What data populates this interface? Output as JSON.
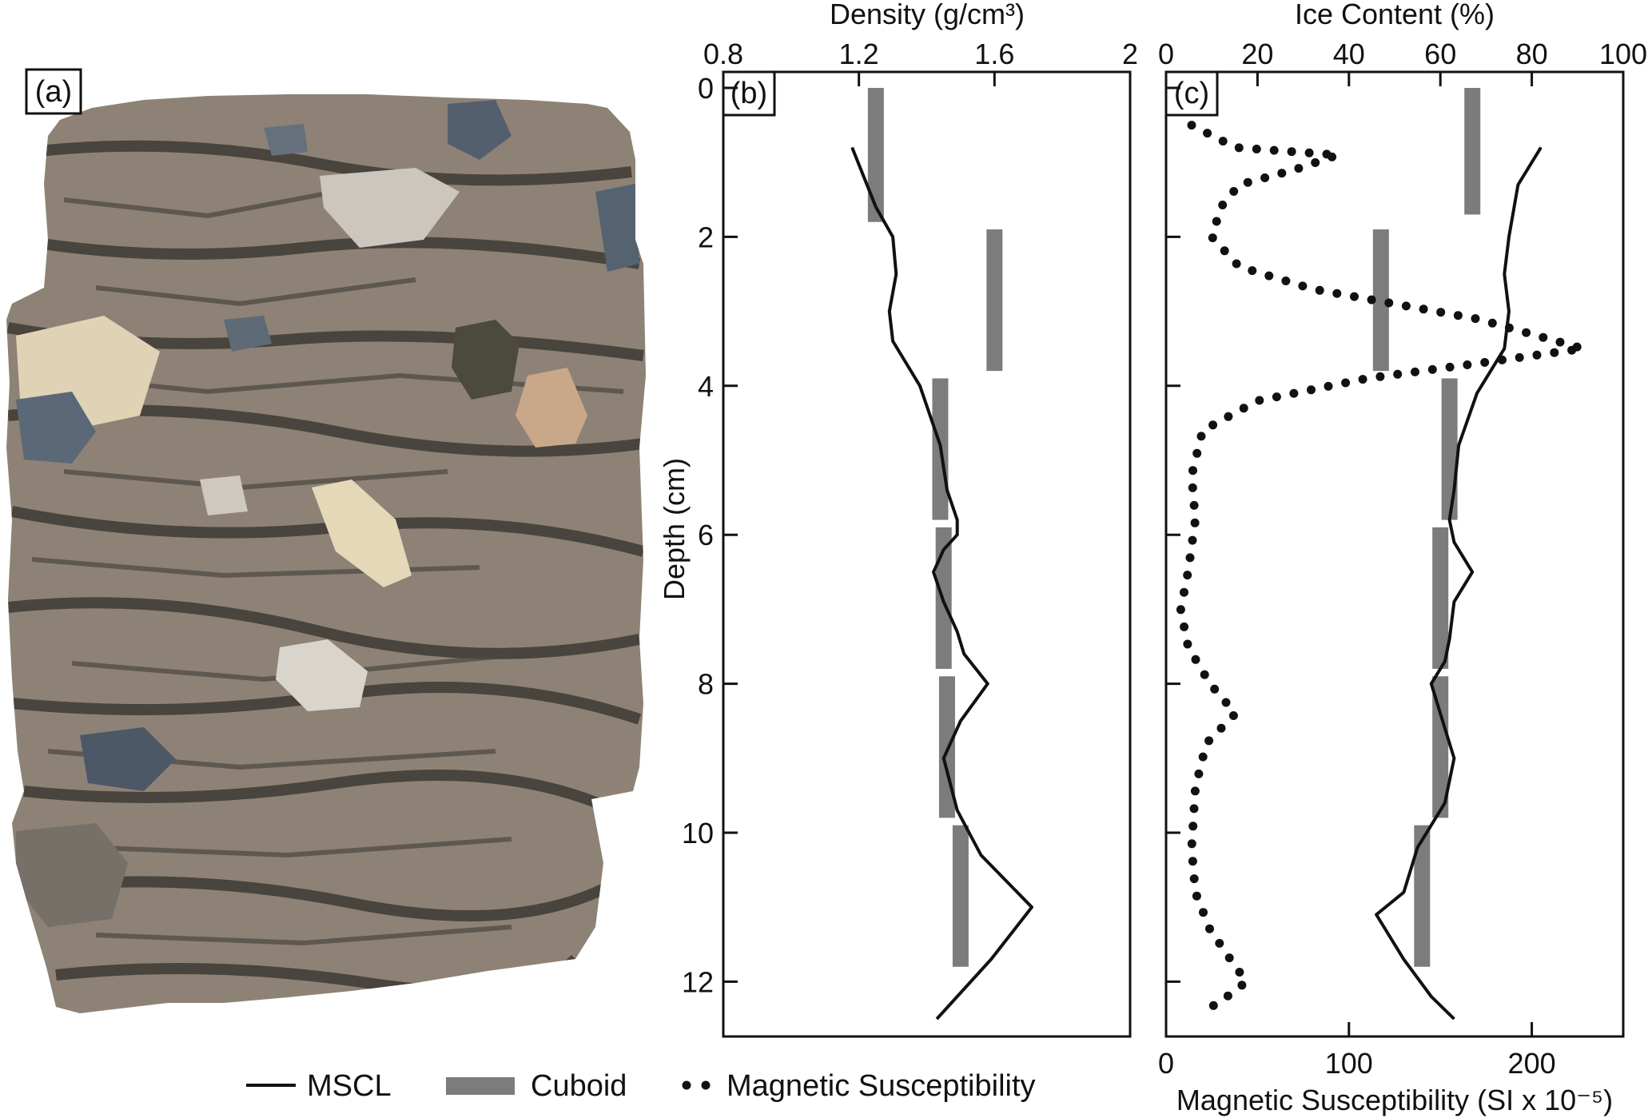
{
  "panels": {
    "a": {
      "label": "(a)"
    },
    "b": {
      "label": "(b)"
    },
    "c": {
      "label": "(c)"
    }
  },
  "legend": {
    "mscl": "MSCL",
    "cuboid": "Cuboid",
    "magsus": "Magnetic Susceptibility"
  },
  "colors": {
    "line": "#111111",
    "cuboid": "#7d7b7b",
    "rock_matrix": "#8d8275",
    "rock_dark": "#3e3a35"
  },
  "chart_data": [
    {
      "panel": "b",
      "type": "line",
      "title": "",
      "xlabel": "Density (g/cm³)",
      "ylabel": "Depth (cm)",
      "x_axis_position": "top",
      "xlim": [
        0.8,
        2.0
      ],
      "xticks": [
        0.8,
        1.2,
        1.6,
        2.0
      ],
      "xtick_labels": [
        "0.8",
        "1.2",
        "1.6",
        "2"
      ],
      "ylim": [
        0,
        13
      ],
      "yticks": [
        0,
        2,
        4,
        6,
        8,
        10,
        12
      ],
      "ytick_labels": [
        "0",
        "2",
        "4",
        "6",
        "8",
        "10",
        "12"
      ],
      "y_inverted": true,
      "grid": false,
      "mscl": {
        "name": "MSCL",
        "points": [
          {
            "x": 1.18,
            "y": 0.8
          },
          {
            "x": 1.25,
            "y": 1.6
          },
          {
            "x": 1.3,
            "y": 2.0
          },
          {
            "x": 1.31,
            "y": 2.5
          },
          {
            "x": 1.29,
            "y": 3.0
          },
          {
            "x": 1.3,
            "y": 3.4
          },
          {
            "x": 1.38,
            "y": 4.0
          },
          {
            "x": 1.44,
            "y": 4.8
          },
          {
            "x": 1.46,
            "y": 5.4
          },
          {
            "x": 1.49,
            "y": 5.8
          },
          {
            "x": 1.49,
            "y": 6.0
          },
          {
            "x": 1.45,
            "y": 6.2
          },
          {
            "x": 1.42,
            "y": 6.5
          },
          {
            "x": 1.45,
            "y": 6.9
          },
          {
            "x": 1.49,
            "y": 7.3
          },
          {
            "x": 1.51,
            "y": 7.6
          },
          {
            "x": 1.58,
            "y": 8.0
          },
          {
            "x": 1.5,
            "y": 8.5
          },
          {
            "x": 1.45,
            "y": 9.0
          },
          {
            "x": 1.49,
            "y": 9.7
          },
          {
            "x": 1.56,
            "y": 10.3
          },
          {
            "x": 1.71,
            "y": 11.0
          },
          {
            "x": 1.59,
            "y": 11.7
          },
          {
            "x": 1.43,
            "y": 12.5
          }
        ]
      },
      "cuboid": {
        "name": "Cuboid",
        "segments": [
          {
            "x": 1.25,
            "y_top": 0.0,
            "y_bottom": 1.8
          },
          {
            "x": 1.6,
            "y_top": 1.9,
            "y_bottom": 3.8
          },
          {
            "x": 1.44,
            "y_top": 3.9,
            "y_bottom": 5.8
          },
          {
            "x": 1.45,
            "y_top": 5.9,
            "y_bottom": 7.8
          },
          {
            "x": 1.46,
            "y_top": 7.9,
            "y_bottom": 9.8
          },
          {
            "x": 1.5,
            "y_top": 9.9,
            "y_bottom": 11.8
          }
        ]
      }
    },
    {
      "panel": "c",
      "type": "line",
      "title": "",
      "xlabel": "Ice Content (%)",
      "x_axis_position": "top",
      "xlim": [
        0,
        100
      ],
      "xticks": [
        0,
        20,
        40,
        60,
        80,
        100
      ],
      "xtick_labels": [
        "0",
        "20",
        "40",
        "60",
        "80",
        "100"
      ],
      "x2label": "Magnetic Susceptibility (SI x 10⁻⁵)",
      "x2_axis_position": "bottom",
      "x2lim": [
        0,
        250
      ],
      "x2ticks": [
        0,
        100,
        200
      ],
      "x2tick_labels": [
        "0",
        "100",
        "200"
      ],
      "ylim": [
        0,
        13
      ],
      "yticks": [
        0,
        2,
        4,
        6,
        8,
        10,
        12
      ],
      "y_inverted": true,
      "grid": false,
      "mscl": {
        "name": "MSCL",
        "points": [
          {
            "x": 82,
            "y": 0.8
          },
          {
            "x": 77,
            "y": 1.3
          },
          {
            "x": 75,
            "y": 2.0
          },
          {
            "x": 74,
            "y": 2.5
          },
          {
            "x": 75,
            "y": 3.0
          },
          {
            "x": 74,
            "y": 3.5
          },
          {
            "x": 68,
            "y": 4.1
          },
          {
            "x": 64,
            "y": 4.8
          },
          {
            "x": 63,
            "y": 5.4
          },
          {
            "x": 62,
            "y": 5.8
          },
          {
            "x": 63,
            "y": 6.1
          },
          {
            "x": 64,
            "y": 6.2
          },
          {
            "x": 67,
            "y": 6.5
          },
          {
            "x": 63,
            "y": 6.9
          },
          {
            "x": 62,
            "y": 7.4
          },
          {
            "x": 61,
            "y": 7.7
          },
          {
            "x": 58,
            "y": 8.0
          },
          {
            "x": 60,
            "y": 8.4
          },
          {
            "x": 63,
            "y": 9.0
          },
          {
            "x": 61,
            "y": 9.6
          },
          {
            "x": 55,
            "y": 10.2
          },
          {
            "x": 52,
            "y": 10.8
          },
          {
            "x": 46,
            "y": 11.1
          },
          {
            "x": 52,
            "y": 11.7
          },
          {
            "x": 58,
            "y": 12.2
          },
          {
            "x": 63,
            "y": 12.5
          }
        ]
      },
      "cuboid": {
        "name": "Cuboid",
        "segments": [
          {
            "x": 67,
            "y_top": 0.0,
            "y_bottom": 1.7
          },
          {
            "x": 47,
            "y_top": 1.9,
            "y_bottom": 3.8
          },
          {
            "x": 62,
            "y_top": 3.9,
            "y_bottom": 5.8
          },
          {
            "x": 60,
            "y_top": 5.9,
            "y_bottom": 7.8
          },
          {
            "x": 60,
            "y_top": 7.9,
            "y_bottom": 9.8
          },
          {
            "x": 56,
            "y_top": 9.9,
            "y_bottom": 11.8
          }
        ]
      },
      "magnetic_susceptibility": {
        "name": "Magnetic Susceptibility",
        "axis": "x2",
        "points": [
          {
            "x": 14,
            "y": 0.5
          },
          {
            "x": 38,
            "y": 0.8
          },
          {
            "x": 94,
            "y": 0.9
          },
          {
            "x": 70,
            "y": 1.1
          },
          {
            "x": 40,
            "y": 1.3
          },
          {
            "x": 30,
            "y": 1.6
          },
          {
            "x": 25,
            "y": 2.0
          },
          {
            "x": 40,
            "y": 2.4
          },
          {
            "x": 80,
            "y": 2.7
          },
          {
            "x": 170,
            "y": 3.1
          },
          {
            "x": 228,
            "y": 3.5
          },
          {
            "x": 170,
            "y": 3.7
          },
          {
            "x": 110,
            "y": 3.9
          },
          {
            "x": 50,
            "y": 4.2
          },
          {
            "x": 20,
            "y": 4.6
          },
          {
            "x": 14,
            "y": 5.2
          },
          {
            "x": 16,
            "y": 5.8
          },
          {
            "x": 12,
            "y": 6.5
          },
          {
            "x": 8,
            "y": 7.0
          },
          {
            "x": 12,
            "y": 7.5
          },
          {
            "x": 24,
            "y": 8.0
          },
          {
            "x": 38,
            "y": 8.4
          },
          {
            "x": 22,
            "y": 8.8
          },
          {
            "x": 16,
            "y": 9.4
          },
          {
            "x": 14,
            "y": 10.2
          },
          {
            "x": 16,
            "y": 10.8
          },
          {
            "x": 24,
            "y": 11.3
          },
          {
            "x": 38,
            "y": 11.8
          },
          {
            "x": 44,
            "y": 12.0
          },
          {
            "x": 28,
            "y": 12.3
          },
          {
            "x": 18,
            "y": 12.4
          }
        ]
      }
    }
  ]
}
